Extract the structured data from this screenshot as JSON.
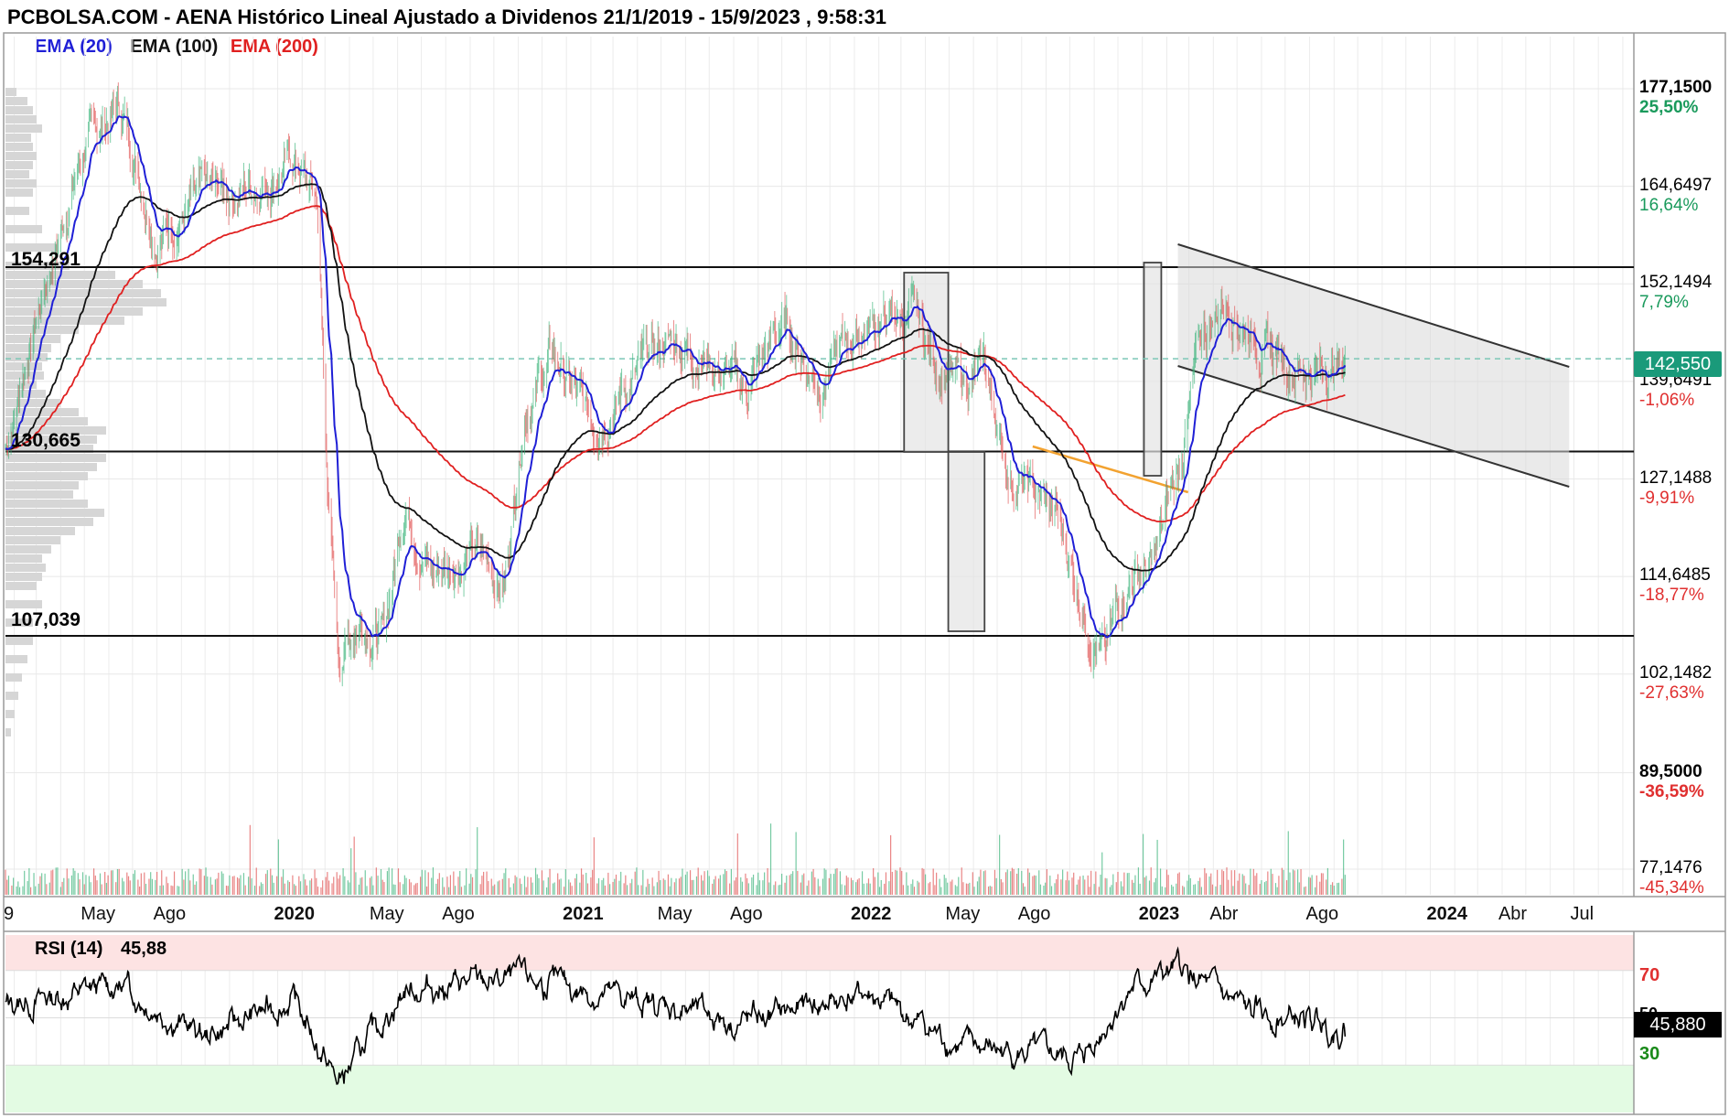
{
  "header": {
    "title": "PCBOLSA.COM - AENA Histórico Lineal Ajustado a Dividenos 21/1/2019 - 15/9/2023 , 9:58:31"
  },
  "legend": [
    {
      "label": "EMA (20)",
      "color": "#1f1fd6"
    },
    {
      "label": "EMA (100)",
      "color": "#111111"
    },
    {
      "label": "EMA (200)",
      "color": "#e02020"
    }
  ],
  "price_axis": [
    {
      "value": "177,1500",
      "pct": "25,50%",
      "pct_color": "#1a9a5c",
      "bold": true
    },
    {
      "value": "164,6497",
      "pct": "16,64%",
      "pct_color": "#1a9a5c",
      "bold": false
    },
    {
      "value": "152,1494",
      "pct": "7,79%",
      "pct_color": "#1a9a5c",
      "bold": false
    },
    {
      "value": "139,6491",
      "pct": "-1,06%",
      "pct_color": "#e03030",
      "bold": false
    },
    {
      "value": "127,1488",
      "pct": "-9,91%",
      "pct_color": "#e03030",
      "bold": false
    },
    {
      "value": "114,6485",
      "pct": "-18,77%",
      "pct_color": "#e03030",
      "bold": false
    },
    {
      "value": "102,1482",
      "pct": "-27,63%",
      "pct_color": "#e03030",
      "bold": false
    },
    {
      "value": "89,5000",
      "pct": "-36,59%",
      "pct_color": "#e03030",
      "bold": true
    },
    {
      "value": "77,1476",
      "pct": "-45,34%",
      "pct_color": "#e03030",
      "bold": false
    }
  ],
  "levels": [
    {
      "label": "154,291",
      "value": 154.291
    },
    {
      "label": "130,665",
      "value": 130.665
    },
    {
      "label": "107,039",
      "value": 107.039
    }
  ],
  "last_price": "142,550",
  "time_axis": [
    {
      "label": "9",
      "year": false
    },
    {
      "label": "May",
      "year": false
    },
    {
      "label": "Ago",
      "year": false
    },
    {
      "label": "2020",
      "year": true
    },
    {
      "label": "May",
      "year": false
    },
    {
      "label": "Ago",
      "year": false
    },
    {
      "label": "2021",
      "year": true
    },
    {
      "label": "May",
      "year": false
    },
    {
      "label": "Ago",
      "year": false
    },
    {
      "label": "2022",
      "year": true
    },
    {
      "label": "May",
      "year": false
    },
    {
      "label": "Ago",
      "year": false
    },
    {
      "label": "2023",
      "year": true
    },
    {
      "label": "Abr",
      "year": false
    },
    {
      "label": "Ago",
      "year": false
    },
    {
      "label": "2024",
      "year": true
    },
    {
      "label": "Abr",
      "year": false
    },
    {
      "label": "Jul",
      "year": false
    }
  ],
  "rsi": {
    "label": "RSI (14)",
    "value_label": "45,88",
    "last_box": "45,880",
    "overbought": "70",
    "mid": "50",
    "oversold": "30"
  },
  "chart_data": {
    "type": "line",
    "series_ref": "AENA daily close, ajustado a dividendos",
    "x": [
      "2019-01-21",
      "2019-03-01",
      "2019-05-01",
      "2019-06-15",
      "2019-08-01",
      "2019-10-01",
      "2019-12-01",
      "2020-01-20",
      "2020-02-20",
      "2020-03-05",
      "2020-03-18",
      "2020-04-15",
      "2020-05-15",
      "2020-06-10",
      "2020-07-15",
      "2020-09-01",
      "2020-10-15",
      "2020-11-09",
      "2020-12-15",
      "2021-02-01",
      "2021-03-15",
      "2021-05-15",
      "2021-07-01",
      "2021-08-15",
      "2021-10-01",
      "2021-11-15",
      "2022-01-15",
      "2022-03-15",
      "2022-04-15",
      "2022-05-15",
      "2022-06-15",
      "2022-07-15",
      "2022-09-15",
      "2022-10-15",
      "2022-11-15",
      "2022-12-15",
      "2023-01-15",
      "2023-02-15",
      "2023-03-15",
      "2023-04-15",
      "2023-05-15",
      "2023-06-15",
      "2023-07-15",
      "2023-08-15",
      "2023-09-15"
    ],
    "close": [
      131,
      148,
      170,
      175,
      159,
      163,
      165,
      168,
      163,
      125,
      104,
      110,
      107,
      125,
      115,
      118,
      114,
      137,
      143,
      134,
      139,
      145,
      143,
      138,
      147,
      140,
      147,
      148,
      142,
      139,
      141,
      128,
      122,
      112,
      104,
      115,
      116,
      128,
      144,
      151,
      147,
      143,
      142,
      141,
      142.55
    ],
    "ema20_last": 142.8,
    "ema100_last": 142.0,
    "ema200_last": 138.7,
    "ylim": [
      77.15,
      186.5
    ],
    "rsi_x": [
      "2019-01-21",
      "2019-06-15",
      "2019-10-01",
      "2020-01-20",
      "2020-03-18",
      "2020-06-10",
      "2020-11-09",
      "2021-03-15",
      "2021-08-15",
      "2022-01-15",
      "2022-05-15",
      "2022-10-15",
      "2022-12-15",
      "2023-02-15",
      "2023-05-15",
      "2023-09-15"
    ],
    "rsi": [
      55,
      64,
      42,
      58,
      22,
      62,
      66,
      58,
      48,
      60,
      38,
      32,
      62,
      70,
      52,
      45.88
    ],
    "rsi_ylim": [
      10,
      85
    ]
  }
}
